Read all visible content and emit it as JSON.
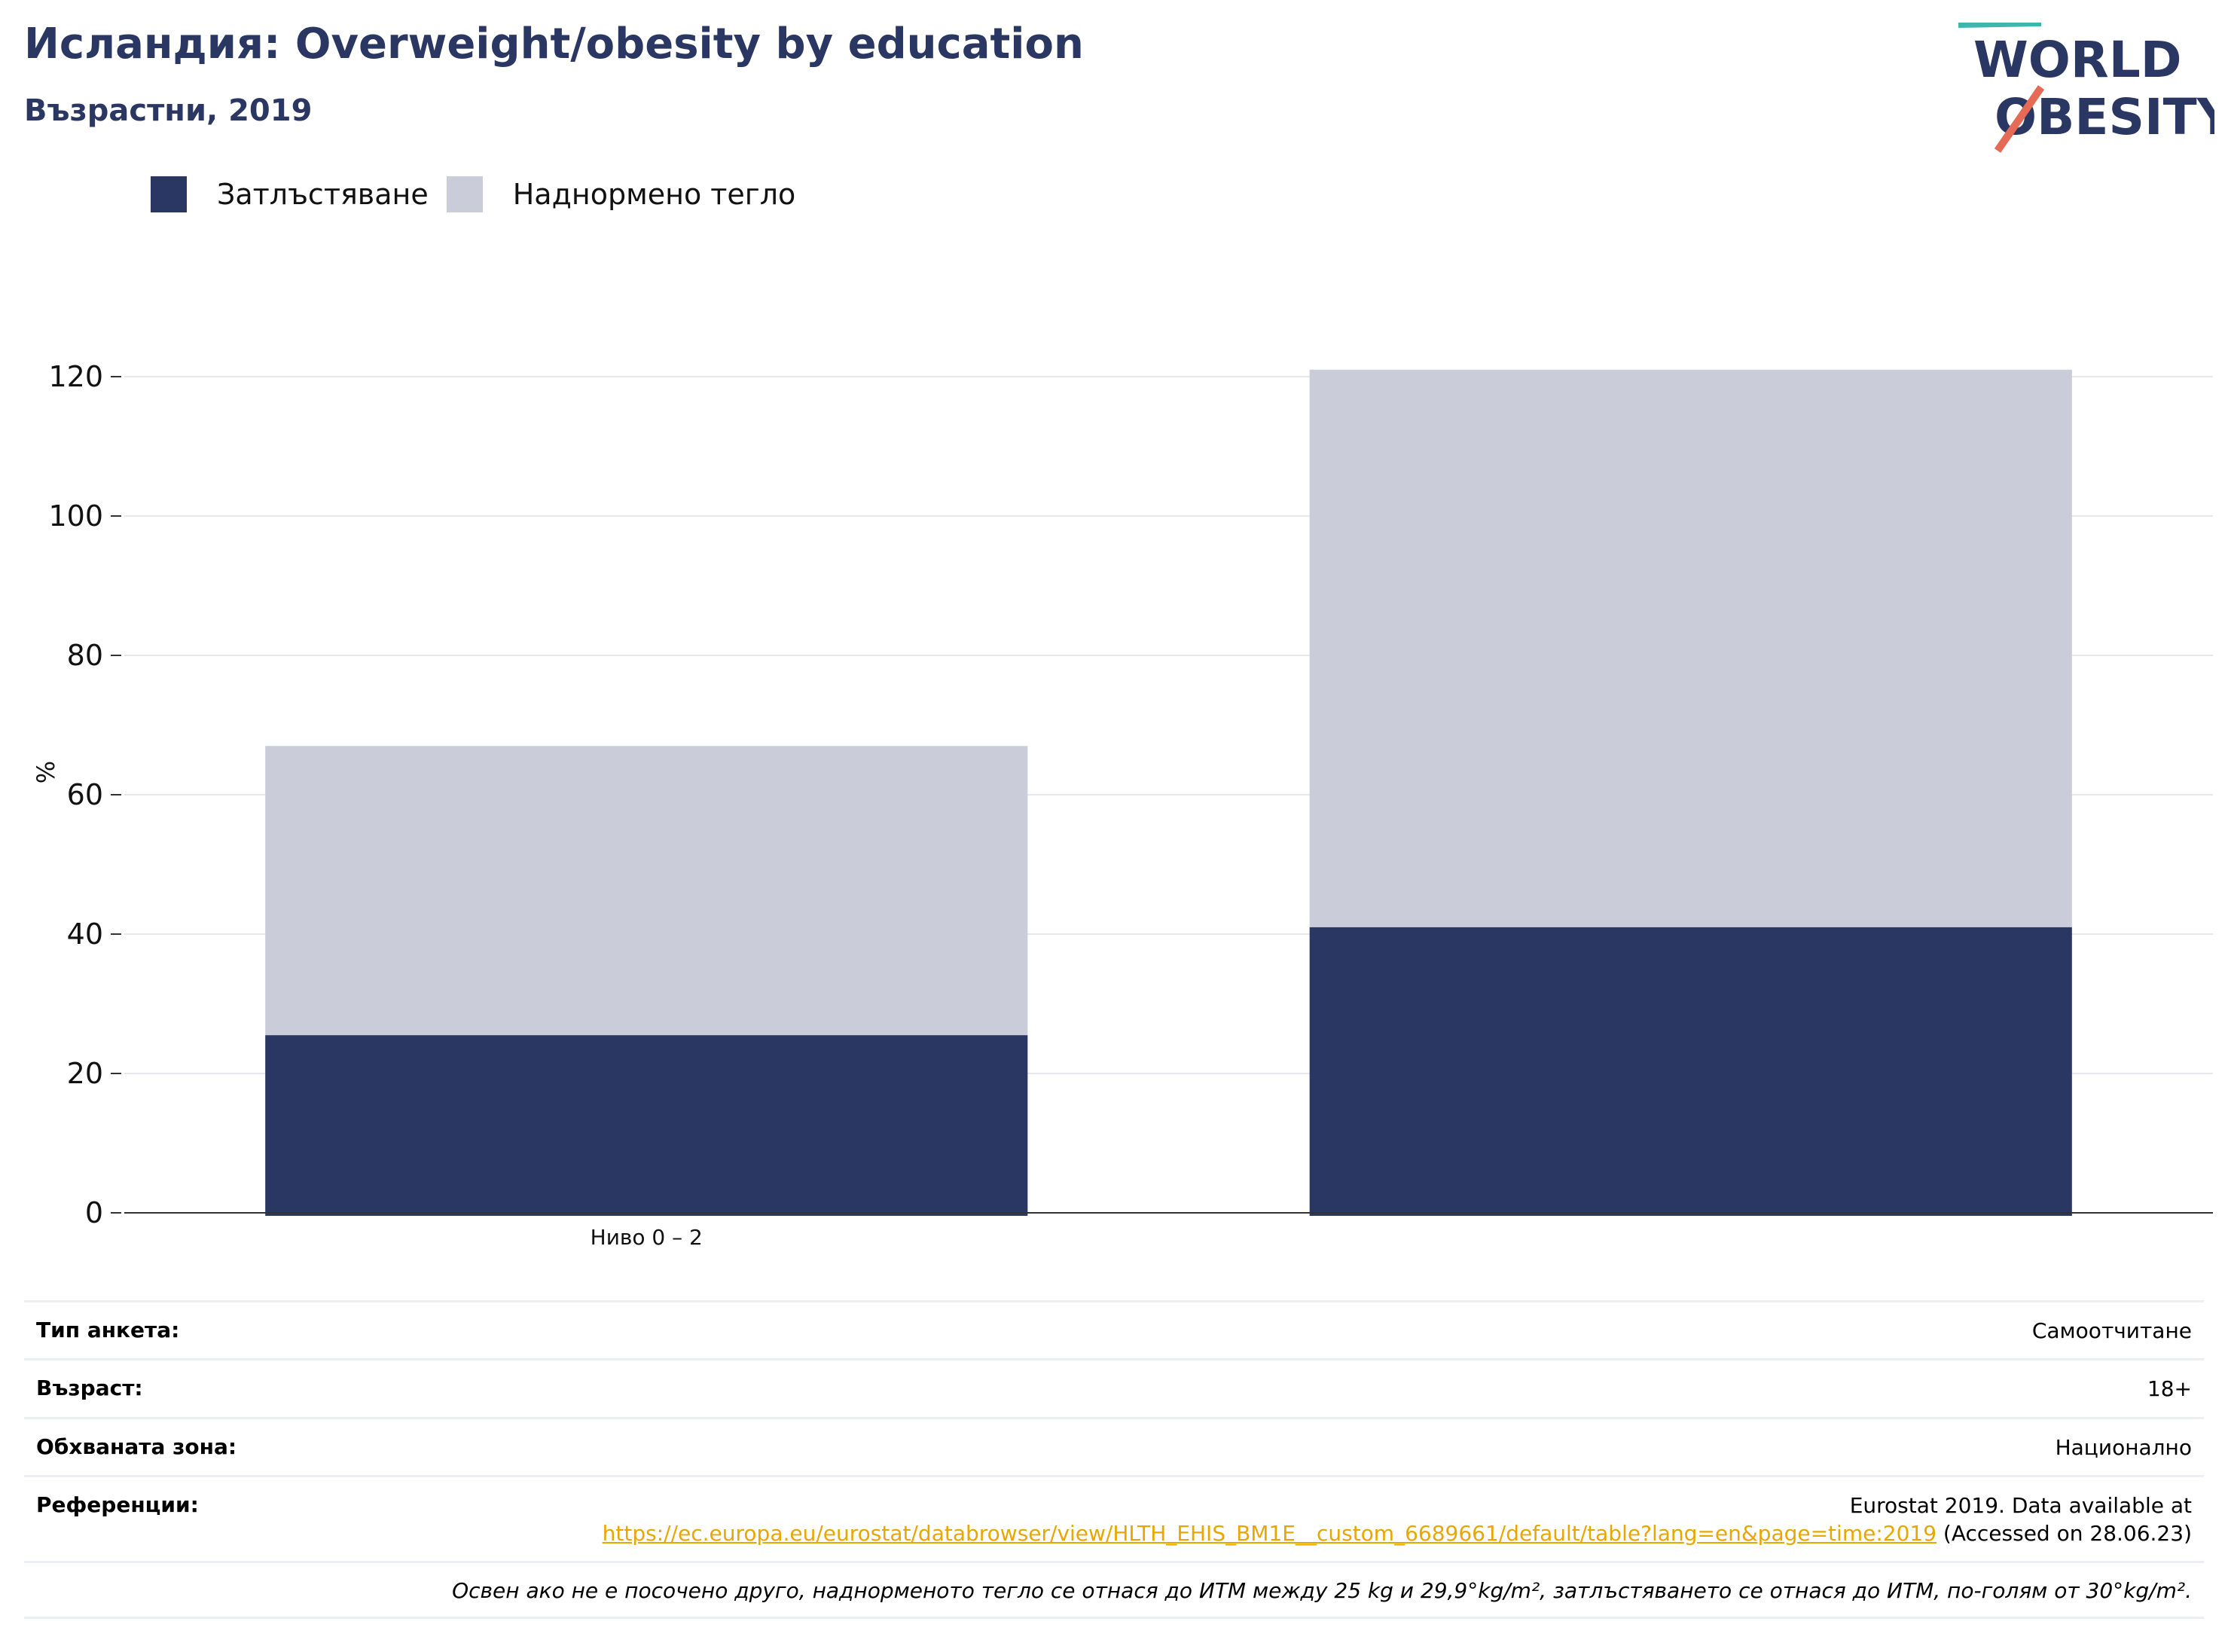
{
  "title": "Исландия: Overweight/obesity by education",
  "subtitle": "Възрастни, 2019",
  "logo": {
    "line1": "WORLD",
    "line2": "OBESITY"
  },
  "colors": {
    "obesity": "#2a3763",
    "overweight": "#cacdd9",
    "title": "#2a3763",
    "link": "#e8a700",
    "grid": "#e6e8ee"
  },
  "chart_data": {
    "type": "bar",
    "stacked": true,
    "categories": [
      "Ниво 0 – 2",
      ""
    ],
    "series": [
      {
        "name": "Затлъстяване",
        "values": [
          25.5,
          41
        ]
      },
      {
        "name": "Наднормено тегло",
        "values": [
          41.5,
          80
        ]
      }
    ],
    "xlabel": "",
    "ylabel": "%",
    "ylim": [
      0,
      120
    ],
    "yticks": [
      0,
      20,
      40,
      60,
      80,
      100,
      120
    ],
    "grid": true,
    "legend_position": "top-left"
  },
  "info": {
    "survey_label": "Тип анкета:",
    "survey_value": "Самоотчитане",
    "age_label": "Възраст:",
    "age_value": "18+",
    "area_label": "Обхваната зона:",
    "area_value": "Национално",
    "ref_label": "Референции:",
    "ref_text_before": "Eurostat 2019. Data available at",
    "ref_link": "https://ec.europa.eu/eurostat/databrowser/view/HLTH_EHIS_BM1E__custom_6689661/default/table?lang=en&page=time:2019",
    "ref_text_after": "(Accessed on 28.06.23)",
    "note": "Освен ако не е посочено друго, наднорменото тегло се отнася до ИТМ между 25 kg и 29,9°kg/m², затлъстяването се отнася до ИТМ, по-голям от 30°kg/m²."
  }
}
